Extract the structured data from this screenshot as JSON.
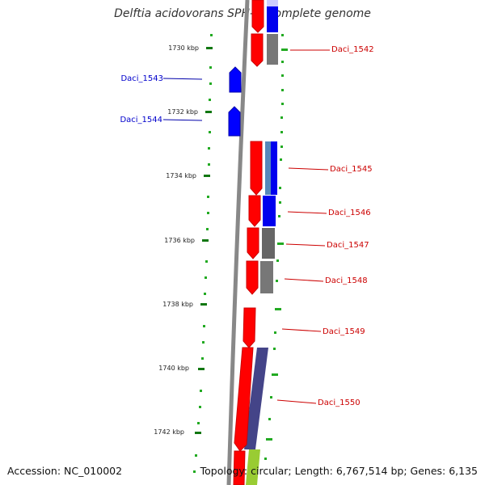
{
  "title": "Delftia acidovorans SPH-1, complete genome",
  "accession": "Accession: NC_010002",
  "summary": "Topology: circular; Length: 6,767,514 bp; Genes: 6,135",
  "scale": {
    "ticks": [
      "1730 kbp",
      "1732 kbp",
      "1734 kbp",
      "1736 kbp",
      "1738 kbp",
      "1740 kbp",
      "1742 kbp"
    ]
  },
  "genes": [
    {
      "label": "Daci_1542",
      "color": "#cc0000"
    },
    {
      "label": "Daci_1543",
      "color": "#0000cc"
    },
    {
      "label": "Daci_1544",
      "color": "#0000cc"
    },
    {
      "label": "Daci_1545",
      "color": "#cc0000"
    },
    {
      "label": "Daci_1546",
      "color": "#cc0000"
    },
    {
      "label": "Daci_1547",
      "color": "#cc0000"
    },
    {
      "label": "Daci_1548",
      "color": "#cc0000"
    },
    {
      "label": "Daci_1549",
      "color": "#cc0000"
    },
    {
      "label": "Daci_1550",
      "color": "#cc0000"
    }
  ],
  "colors": {
    "forward_strand": "#ff0000",
    "reverse_strand": "#0000ff",
    "backbone": "#888888",
    "tick_mark": "#00aa00",
    "cog_grey": "#666666",
    "cog_navy": "#444488",
    "cog_green": "#99cc33",
    "cog_steel": "#6699cc"
  }
}
